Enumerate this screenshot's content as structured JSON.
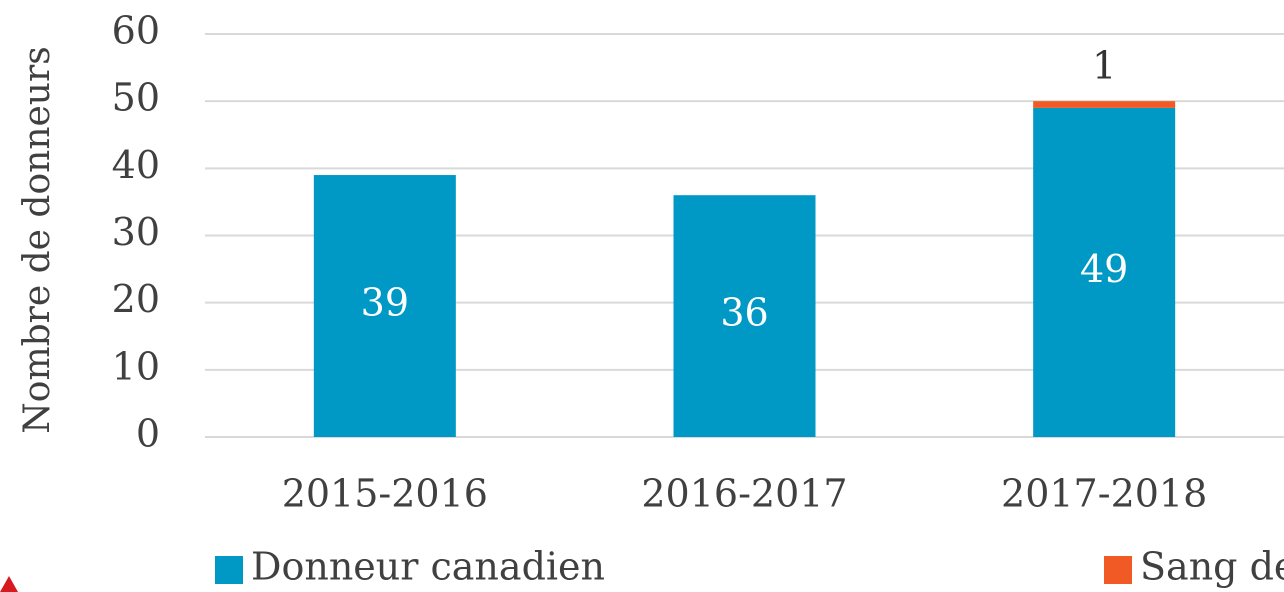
{
  "chart_data": {
    "type": "stacked_bar",
    "y_label": "Nombre de donneurs",
    "categories": [
      "2015-2016",
      "2016-2017",
      "2017-2018"
    ],
    "series": [
      {
        "name": "Donneur canadien",
        "color": "#0099c6",
        "label_color": "#ffffff",
        "values": [
          39,
          36,
          49
        ]
      },
      {
        "name": "Sang de cordon canadien",
        "color": "#f15a24",
        "label_color": "#333333",
        "values": [
          null,
          null,
          1
        ]
      }
    ],
    "ylim": [
      0,
      60
    ],
    "yticks": [
      0,
      10,
      20,
      30,
      40,
      50,
      60
    ],
    "grid": true,
    "legend": "bottom"
  }
}
